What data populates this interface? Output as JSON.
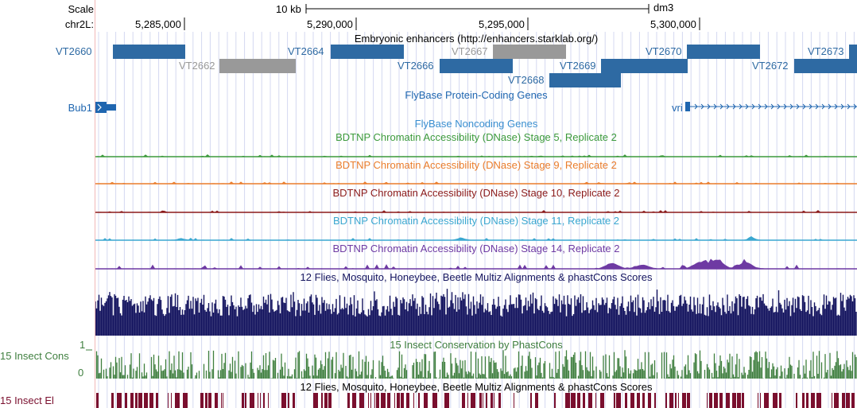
{
  "ruler": {
    "scale_label": "Scale",
    "chrom_label": "chr2L:",
    "scale_bar_text": "10 kb",
    "assembly": "dm3",
    "ticks": [
      "5,285,000",
      "5,290,000",
      "5,295,000",
      "5,300,000"
    ]
  },
  "tracks": {
    "enhancers": {
      "title": "Embryonic enhancers (http://enhancers.starklab.org/)",
      "items": [
        {
          "name": "VT2660",
          "color": "#2e6aa3"
        },
        {
          "name": "VT2662",
          "color": "#999999"
        },
        {
          "name": "VT2664",
          "color": "#2e6aa3"
        },
        {
          "name": "VT2666",
          "color": "#2e6aa3"
        },
        {
          "name": "VT2667",
          "color": "#999999"
        },
        {
          "name": "VT2668",
          "color": "#2e6aa3"
        },
        {
          "name": "VT2669",
          "color": "#2e6aa3"
        },
        {
          "name": "VT2670",
          "color": "#2e6aa3"
        },
        {
          "name": "VT2672",
          "color": "#2e6aa3"
        },
        {
          "name": "VT2673",
          "color": "#2e6aa3"
        }
      ]
    },
    "protein_genes": {
      "title": "FlyBase Protein-Coding Genes",
      "color": "#1f66b0",
      "genes": [
        "Bub1",
        "vri"
      ]
    },
    "noncoding_genes": {
      "title": "FlyBase Noncoding Genes",
      "color": "#3a8fd0"
    },
    "dnase": [
      {
        "title": "BDTNP Chromatin Accessibility (DNase) Stage 5, Replicate 2",
        "color": "#3c9a3c"
      },
      {
        "title": "BDTNP Chromatin Accessibility (DNase) Stage 9, Replicate 2",
        "color": "#ea7d2c"
      },
      {
        "title": "BDTNP Chromatin Accessibility (DNase) Stage 10, Replicate 2",
        "color": "#8b1a1a"
      },
      {
        "title": "BDTNP Chromatin Accessibility (DNase) Stage 11, Replicate 2",
        "color": "#3aa7d0"
      },
      {
        "title": "BDTNP Chromatin Accessibility (DNase) Stage 14, Replicate 2",
        "color": "#6e3aa3"
      }
    ],
    "multiz": {
      "title": "12 Flies, Mosquito, Honeybee, Beetle Multiz Alignments & phastCons Scores",
      "color": "#14145f"
    },
    "insect_cons": {
      "title": "15 Insect Conservation by PhastCons",
      "left_label": "15 Insect Cons",
      "ymax": "1",
      "ymin": "0",
      "color": "#3f7f3f"
    },
    "insect_elements": {
      "title": "12 Flies, Mosquito, Honeybee, Beetle Multiz Alignments & phastCons Scores",
      "left_label": "15 Insect El",
      "color": "#7a0f2e"
    }
  }
}
